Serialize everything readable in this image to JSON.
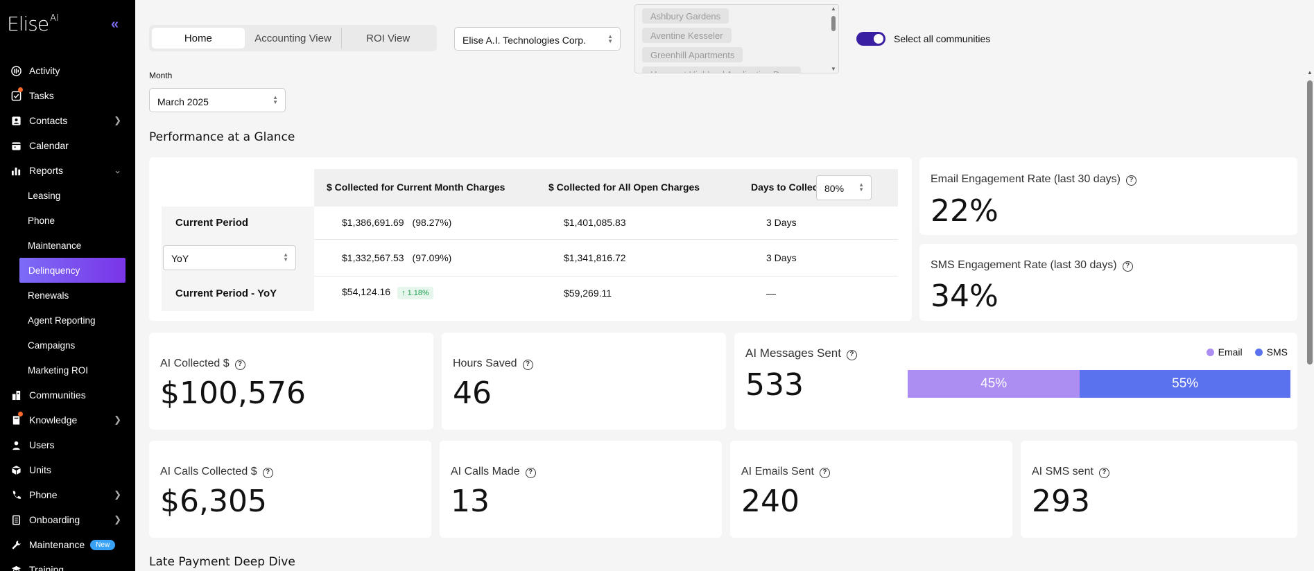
{
  "app": {
    "logo": "Elise",
    "logo_sup": "AI"
  },
  "sidebar": {
    "items": [
      {
        "label": "Activity",
        "icon": "activity-icon"
      },
      {
        "label": "Tasks",
        "icon": "tasks-icon"
      },
      {
        "label": "Contacts",
        "icon": "contacts-icon"
      },
      {
        "label": "Calendar",
        "icon": "calendar-icon"
      },
      {
        "label": "Reports",
        "icon": "reports-icon"
      }
    ],
    "reports_sub": [
      "Leasing",
      "Phone",
      "Maintenance",
      "Delinquency",
      "Renewals",
      "Agent Reporting",
      "Campaigns",
      "Marketing ROI"
    ],
    "items2": [
      {
        "label": "Communities",
        "icon": "communities-icon"
      },
      {
        "label": "Knowledge",
        "icon": "knowledge-icon"
      },
      {
        "label": "Users",
        "icon": "users-icon"
      },
      {
        "label": "Units",
        "icon": "units-icon"
      },
      {
        "label": "Phone",
        "icon": "phone-icon"
      },
      {
        "label": "Onboarding",
        "icon": "onboarding-icon"
      },
      {
        "label": "Maintenance",
        "icon": "maintenance-icon"
      },
      {
        "label": "Training",
        "icon": "training-icon"
      }
    ],
    "new_badge": "New"
  },
  "tabs": [
    "Home",
    "Accounting View",
    "ROI View"
  ],
  "company_select": "Elise A.I. Technologies Corp.",
  "communities": [
    "Ashbury Gardens",
    "Aventine Kesseler",
    "Greenhill Apartments",
    "Haven at Highland Application De..."
  ],
  "toggle_label": "Select all communities",
  "month": {
    "label": "Month",
    "value": "March 2025"
  },
  "section_title": "Performance at a Glance",
  "table": {
    "headers": [
      "$ Collected for Current Month Charges",
      "$ Collected for All Open Charges",
      "Days to Collect"
    ],
    "days_pct": "80%",
    "rows": [
      {
        "label": "Current Period",
        "c1": "$1,386,691.69",
        "c1b": "(98.27%)",
        "c2": "$1,401,085.83",
        "c3": "3 Days"
      },
      {
        "label": "YoY",
        "c1": "$1,332,567.53",
        "c1b": "(97.09%)",
        "c2": "$1,341,816.72",
        "c3": "3 Days"
      },
      {
        "label": "Current Period - YoY",
        "c1": "$54,124.16",
        "change": "↑ 1.18%",
        "c2": "$59,269.11",
        "c3": "—"
      }
    ]
  },
  "email_engagement": {
    "label": "Email Engagement Rate (last 30 days)",
    "value": "22%"
  },
  "sms_engagement": {
    "label": "SMS Engagement Rate (last 30 days)",
    "value": "34%"
  },
  "ai_collected": {
    "label": "AI Collected $",
    "value": "$100,576"
  },
  "hours_saved": {
    "label": "Hours Saved",
    "value": "46"
  },
  "ai_messages": {
    "label": "AI Messages Sent",
    "value": "533",
    "email_pct": "45%",
    "sms_pct": "55%",
    "legend_email": "Email",
    "legend_sms": "SMS",
    "email_color": "#ac8df2",
    "sms_color": "#5b72ee"
  },
  "ai_calls_collected": {
    "label": "AI Calls Collected $",
    "value": "$6,305"
  },
  "ai_calls_made": {
    "label": "AI Calls Made",
    "value": "13"
  },
  "ai_emails_sent": {
    "label": "AI Emails Sent",
    "value": "240"
  },
  "ai_sms_sent": {
    "label": "AI SMS sent",
    "value": "293"
  },
  "deep_dive_title": "Late Payment Deep Dive"
}
